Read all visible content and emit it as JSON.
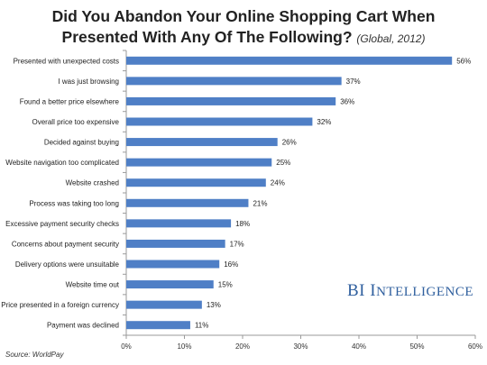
{
  "title_line1": "Did You Abandon Your Online Shopping Cart When",
  "title_line2": "Presented With Any Of The Following?",
  "subtitle": "(Global, 2012)",
  "source": "Source: WorldPay",
  "brand": {
    "initials": "BI",
    "word_first": "I",
    "word_rest": "NTELLIGENCE"
  },
  "chart_data": {
    "type": "bar",
    "orientation": "horizontal",
    "title": "Did You Abandon Your Online Shopping Cart When Presented With Any Of The Following? (Global, 2012)",
    "categories": [
      "Presented with unexpected costs",
      "I was just browsing",
      "Found a better price elsewhere",
      "Overall price too expensive",
      "Decided against buying",
      "Website navigation too complicated",
      "Website crashed",
      "Process was taking too long",
      "Excessive payment security checks",
      "Concerns about payment security",
      "Delivery options were unsuitable",
      "Website time out",
      "Price presented in a foreign currency",
      "Payment was declined"
    ],
    "values": [
      56,
      37,
      36,
      32,
      26,
      25,
      24,
      21,
      18,
      17,
      16,
      15,
      13,
      11
    ],
    "value_labels": [
      "56%",
      "37%",
      "36%",
      "32%",
      "26%",
      "25%",
      "24%",
      "21%",
      "18%",
      "17%",
      "16%",
      "15%",
      "13%",
      "11%"
    ],
    "xticks": [
      0,
      10,
      20,
      30,
      40,
      50,
      60
    ],
    "xtick_labels": [
      "0%",
      "10%",
      "20%",
      "30%",
      "40%",
      "50%",
      "60%"
    ],
    "xlim": [
      0,
      60
    ],
    "xlabel": "",
    "ylabel": "",
    "grid": false,
    "legend": "none",
    "bar_color": "#4f7fc6"
  }
}
